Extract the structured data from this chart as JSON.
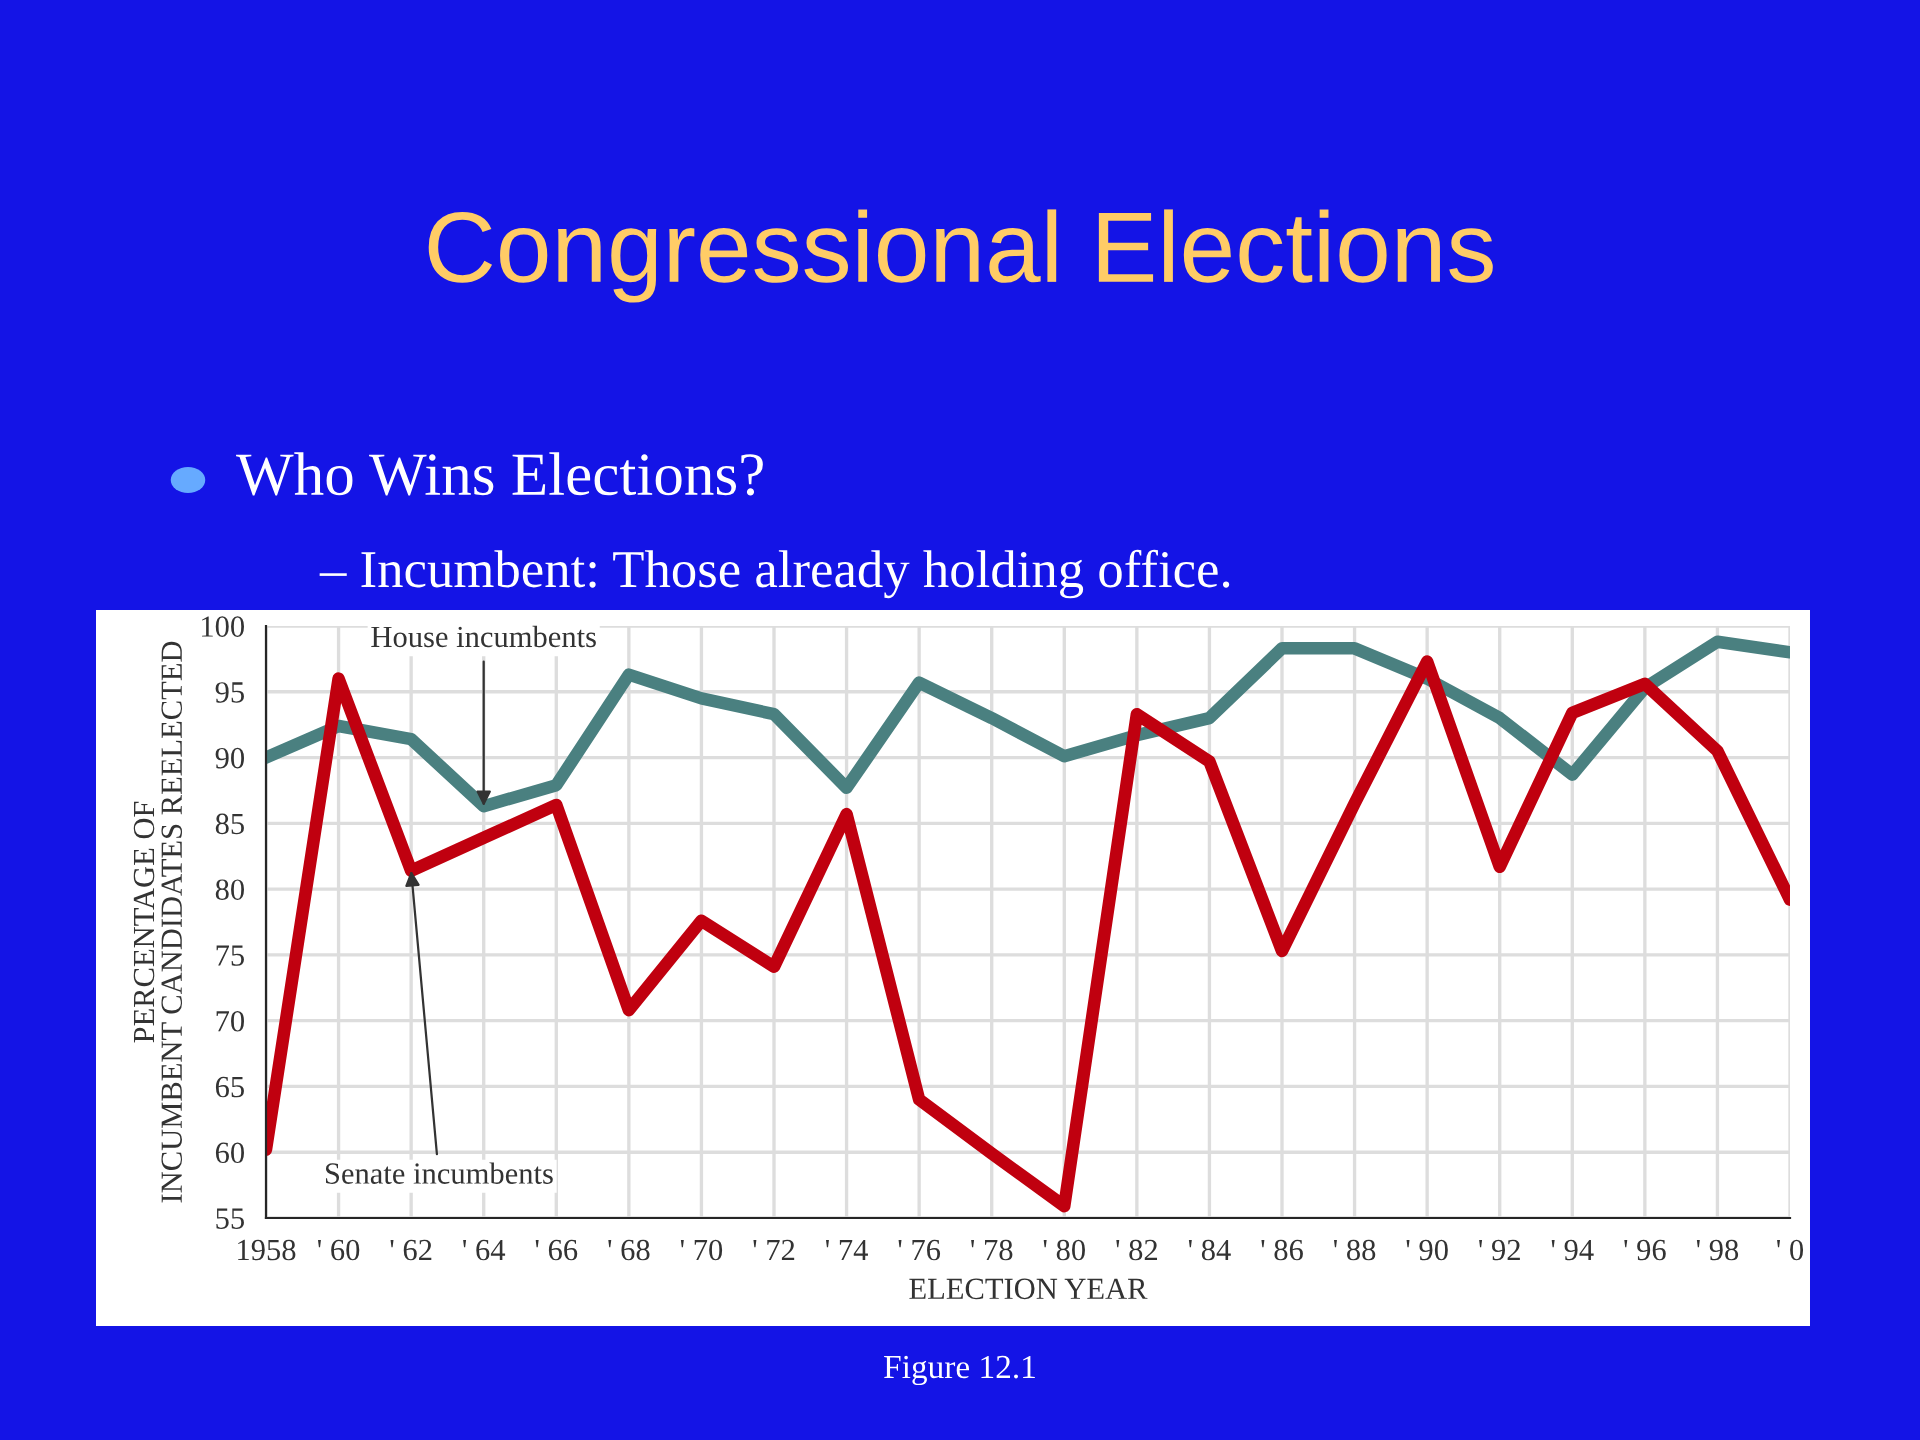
{
  "chart_data": {
    "type": "line",
    "title": "Congressional Elections",
    "subtitle": "Who Wins Elections?",
    "xlabel": "ELECTION YEAR",
    "ylabel": "PERCENTAGE OF\nINCUMBENT CANDIDATES REELECTED",
    "categories": [
      "1958",
      "' 60",
      "' 62",
      "' 64",
      "' 66",
      "' 68",
      "' 70",
      "' 72",
      "' 74",
      "' 76",
      "' 78",
      "' 80",
      "' 82",
      "' 84",
      "' 86",
      "' 88",
      "' 90",
      "' 92",
      "' 94",
      "' 96",
      "' 98",
      "' 0"
    ],
    "series": [
      {
        "color": "#4a8080",
        "values": [
          90.0,
          92.4,
          91.4,
          86.3,
          87.9,
          96.3,
          94.5,
          93.3,
          87.7,
          95.7,
          93.0,
          90.1,
          91.7,
          93.0,
          98.3,
          98.3,
          96.0,
          93.0,
          88.7,
          95.3,
          98.8,
          98.0
        ]
      },
      {
        "color": "#c0000f",
        "values": [
          60.2,
          96.0,
          81.4,
          83.9,
          86.4,
          70.8,
          77.6,
          74.1,
          85.7,
          64.0,
          59.9,
          55.9,
          93.3,
          89.7,
          75.3,
          86.5,
          97.3,
          81.7,
          93.4,
          95.6,
          90.5,
          79.2
        ]
      }
    ],
    "ylim": [
      55,
      100
    ],
    "yticks": [
      55,
      60,
      65,
      70,
      75,
      80,
      85,
      90,
      95,
      100
    ],
    "grid": true,
    "marker": "none",
    "line_style": "solid",
    "annotations": [
      "– Incumbent: Those already holding office.",
      {
        "text": "House incumbents",
        "x": "' 64",
        "y": 86.3
      },
      {
        "text": "Senate incumbents",
        "x": "' 62",
        "y": 81.4
      },
      "Figure 12.1"
    ]
  }
}
